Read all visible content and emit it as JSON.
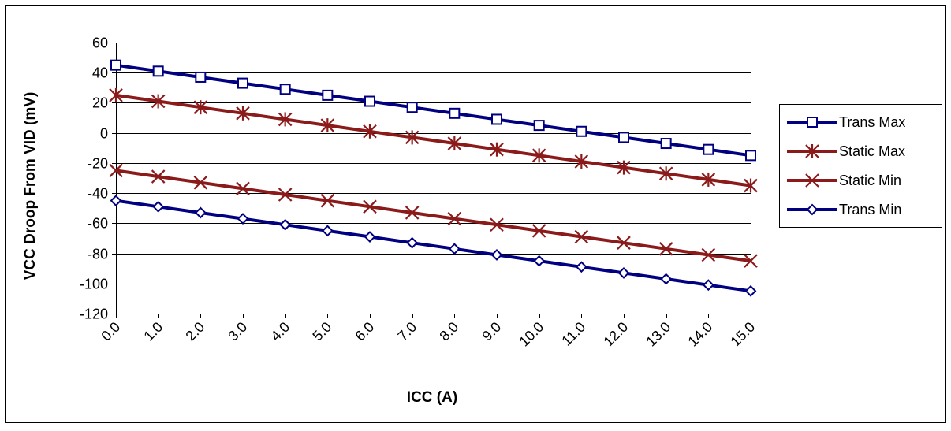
{
  "chart_data": {
    "type": "line",
    "title": "",
    "xlabel": "ICC (A)",
    "ylabel": "VCC Droop From VID (mV)",
    "x": [
      0,
      1,
      2,
      3,
      4,
      5,
      6,
      7,
      8,
      9,
      10,
      11,
      12,
      13,
      14,
      15
    ],
    "x_tick_labels": [
      "0.0",
      "1.0",
      "2.0",
      "3.0",
      "4.0",
      "5.0",
      "6.0",
      "7.0",
      "8.0",
      "9.0",
      "10.0",
      "11.0",
      "12.0",
      "13.0",
      "14.0",
      "15.0"
    ],
    "ylim": [
      -120,
      60
    ],
    "y_ticks": [
      60,
      40,
      20,
      0,
      -20,
      -40,
      -60,
      -80,
      -100,
      -120
    ],
    "grid": "horizontal",
    "legend_position": "right",
    "series": [
      {
        "name": "Trans Max",
        "marker": "square",
        "color": "#000080",
        "values": [
          45,
          41,
          37,
          33,
          29,
          25,
          21,
          17,
          13,
          9,
          5,
          1,
          -3,
          -7,
          -11,
          -15
        ]
      },
      {
        "name": "Static Max",
        "marker": "asterisk",
        "color": "#8B1A1A",
        "values": [
          25,
          21,
          17,
          13,
          9,
          5,
          1,
          -3,
          -7,
          -11,
          -15,
          -19,
          -23,
          -27,
          -31,
          -35
        ]
      },
      {
        "name": "Static Min",
        "marker": "x",
        "color": "#8B1A1A",
        "values": [
          -25,
          -29,
          -33,
          -37,
          -41,
          -45,
          -49,
          -53,
          -57,
          -61,
          -65,
          -69,
          -73,
          -77,
          -81,
          -85
        ]
      },
      {
        "name": "Trans Min",
        "marker": "diamond",
        "color": "#000080",
        "values": [
          -45,
          -49,
          -53,
          -57,
          -61,
          -65,
          -69,
          -73,
          -77,
          -81,
          -85,
          -89,
          -93,
          -97,
          -101,
          -105
        ]
      }
    ]
  }
}
